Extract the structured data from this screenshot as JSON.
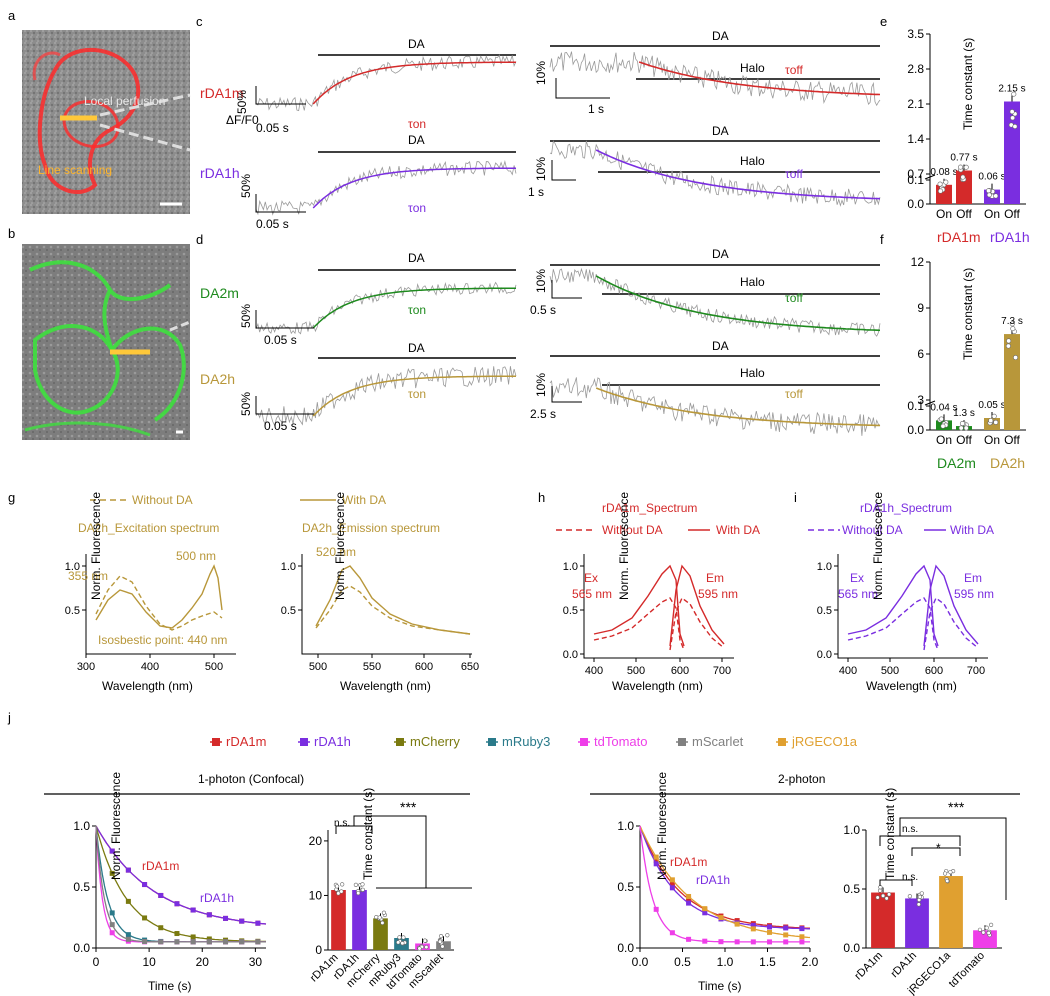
{
  "panel_labels": {
    "a": "a",
    "b": "b",
    "c": "c",
    "d": "d",
    "e": "e",
    "f": "f",
    "g": "g",
    "h": "h",
    "i": "i",
    "j": "j"
  },
  "colors": {
    "rDA1m": "#d42a2a",
    "rDA1h": "#7a2ee0",
    "DA2m": "#1e8a1e",
    "DA2h": "#b8973a",
    "mCherry": "#7a7a10",
    "mRuby3": "#2a7a8a",
    "tdTomato": "#ee3ee8",
    "mScarlet": "#808080",
    "jRGECO1a": "#e0a030",
    "trace": "#9a9a9a"
  },
  "panel_a": {
    "local_perfusion": "Local perfusion",
    "line_scanning": "Line scanning"
  },
  "panel_c": {
    "rows": [
      {
        "sensor": "rDA1m",
        "drug": "DA",
        "on_label": "τon",
        "off_label": "τoff",
        "halo": "Halo",
        "on_scale_y": "50%",
        "on_scale_x": "0.05 s",
        "off_scale_y": "10%",
        "off_scale_x": "1 s",
        "ylabel": "ΔF/F0"
      },
      {
        "sensor": "rDA1h",
        "drug": "DA",
        "on_label": "τon",
        "off_label": "τoff",
        "halo": "Halo",
        "on_scale_y": "50%",
        "on_scale_x": "0.05 s",
        "off_scale_y": "10%",
        "off_scale_x": "1 s"
      }
    ]
  },
  "panel_d": {
    "rows": [
      {
        "sensor": "DA2m",
        "drug": "DA",
        "on_label": "τon",
        "off_label": "τoff",
        "halo": "Halo",
        "on_scale_y": "50%",
        "on_scale_x": "0.05 s",
        "off_scale_y": "10%",
        "off_scale_x": "0.5 s"
      },
      {
        "sensor": "DA2h",
        "drug": "DA",
        "on_label": "τon",
        "off_label": "τoff",
        "halo": "Halo",
        "on_scale_y": "50%",
        "on_scale_x": "0.05 s",
        "off_scale_y": "10%",
        "off_scale_x": "2.5 s"
      }
    ]
  },
  "panel_e": {
    "ylabel": "Time constant (s)",
    "ticks": [
      "0.0",
      "0.1",
      "0.7",
      "1.4",
      "2.1",
      "2.8",
      "3.5"
    ],
    "bars": [
      {
        "label": "On",
        "value": 0.08,
        "text": "0.08 s"
      },
      {
        "label": "Off",
        "value": 0.77,
        "text": "0.77 s"
      },
      {
        "label": "On",
        "value": 0.06,
        "text": "0.06 s"
      },
      {
        "label": "Off",
        "value": 2.15,
        "text": "2.15 s"
      }
    ],
    "groups": [
      "rDA1m",
      "rDA1h"
    ]
  },
  "panel_f": {
    "ylabel": "Time constant (s)",
    "ticks": [
      "0.0",
      "0.1",
      "3",
      "6",
      "9",
      "12"
    ],
    "bars": [
      {
        "label": "On",
        "value": 0.04,
        "text": "0.04 s"
      },
      {
        "label": "Off",
        "value": 1.3,
        "text": "1.3 s"
      },
      {
        "label": "On",
        "value": 0.05,
        "text": "0.05 s"
      },
      {
        "label": "Off",
        "value": 7.3,
        "text": "7.3 s"
      }
    ],
    "groups": [
      "DA2m",
      "DA2h"
    ]
  },
  "panel_g": {
    "legend_without": "Without DA",
    "legend_with": "With DA",
    "ex_title": "DA2h_Excitation spectrum",
    "em_title": "DA2h_Emission spectrum",
    "ex_peak1": "355 nm",
    "ex_peak2": "500 nm",
    "isosbestic": "Isosbestic point: 440 nm",
    "em_peak": "520 nm",
    "ylabel": "Norm. Fluorescence",
    "xlabel": "Wavelength (nm)",
    "ex_xticks": [
      "300",
      "400",
      "500"
    ],
    "em_xticks": [
      "500",
      "550",
      "600",
      "650"
    ],
    "yticks": [
      "0.5",
      "1.0"
    ]
  },
  "panel_h": {
    "title": "rDA1m_Spectrum",
    "legend_without": "Without DA",
    "legend_with": "With DA",
    "ex": "Ex",
    "em": "Em",
    "ex_nm": "565 nm",
    "em_nm": "595 nm",
    "ylabel": "Norm. Fluorescence",
    "xlabel": "Wavelength (nm)",
    "xticks": [
      "400",
      "500",
      "600",
      "700"
    ],
    "yticks": [
      "0.0",
      "0.5",
      "1.0"
    ]
  },
  "panel_i": {
    "title": "rDA1h_Spectrum",
    "legend_without": "Without DA",
    "legend_with": "With DA",
    "ex": "Ex",
    "em": "Em",
    "ex_nm": "565 nm",
    "em_nm": "595 nm",
    "ylabel": "Norm. Fluorescence",
    "xlabel": "Wavelength (nm)",
    "xticks": [
      "400",
      "500",
      "600",
      "700"
    ],
    "yticks": [
      "0.0",
      "0.5",
      "1.0"
    ]
  },
  "panel_j": {
    "legend": [
      "rDA1m",
      "rDA1h",
      "mCherry",
      "mRuby3",
      "tdTomato",
      "mScarlet",
      "jRGECO1a"
    ],
    "one_photon_title": "1-photon (Confocal)",
    "two_photon_title": "2-photon",
    "ylabel": "Norm. Fluorescence",
    "xlabel": "Time (s)",
    "bar_ylabel": "Time constant (s)",
    "stars": "***",
    "ns": "n.s.",
    "single_star": "*",
    "one_xticks": [
      "0",
      "10",
      "20",
      "30"
    ],
    "one_yticks": [
      "0.0",
      "0.5",
      "1.0"
    ],
    "two_xticks": [
      "0.0",
      "0.5",
      "1.0",
      "1.5",
      "2.0"
    ],
    "two_yticks": [
      "0.0",
      "0.5",
      "1.0"
    ],
    "one_bar_yticks": [
      "0",
      "10",
      "20"
    ],
    "two_bar_yticks": [
      "0.0",
      "0.5",
      "1.0"
    ],
    "curve_label_rDA1m": "rDA1m",
    "curve_label_rDA1h": "rDA1h"
  },
  "chart_data": [
    {
      "type": "bar",
      "title": "e",
      "ylabel": "Time constant (s)",
      "categories": [
        "rDA1m On",
        "rDA1m Off",
        "rDA1h On",
        "rDA1h Off"
      ],
      "values": [
        0.08,
        0.77,
        0.06,
        2.15
      ]
    },
    {
      "type": "bar",
      "title": "f",
      "ylabel": "Time constant (s)",
      "categories": [
        "DA2m On",
        "DA2m Off",
        "DA2h On",
        "DA2h Off"
      ],
      "values": [
        0.04,
        1.3,
        0.05,
        7.3
      ]
    },
    {
      "type": "bar",
      "title": "j 1-photon (Confocal)",
      "ylabel": "Time constant (s)",
      "categories": [
        "rDA1m",
        "rDA1h",
        "mCherry",
        "mRuby3",
        "tdTomato",
        "mScarlet"
      ],
      "values": [
        11,
        11,
        5.8,
        2.2,
        1.2,
        1.6
      ],
      "ylim": [
        0,
        22
      ]
    },
    {
      "type": "bar",
      "title": "j 2-photon",
      "ylabel": "Time constant (s)",
      "categories": [
        "rDA1m",
        "rDA1h",
        "jRGECO1a",
        "tdTomato"
      ],
      "values": [
        0.47,
        0.42,
        0.61,
        0.15
      ],
      "ylim": [
        0,
        1
      ]
    },
    {
      "type": "line",
      "title": "j 1-photon decay",
      "xlabel": "Time (s)",
      "ylabel": "Norm. Fluorescence",
      "xlim": [
        0,
        32
      ],
      "ylim": [
        0,
        1
      ],
      "series": [
        {
          "name": "rDA1m",
          "tau": 11
        },
        {
          "name": "rDA1h",
          "tau": 11
        },
        {
          "name": "mCherry",
          "tau": 5.8
        },
        {
          "name": "mRuby3",
          "tau": 2.2
        },
        {
          "name": "tdTomato",
          "tau": 1.2
        },
        {
          "name": "mScarlet",
          "tau": 1.6
        }
      ]
    },
    {
      "type": "line",
      "title": "j 2-photon decay",
      "xlabel": "Time (s)",
      "ylabel": "Norm. Fluorescence",
      "xlim": [
        0,
        2
      ],
      "ylim": [
        0,
        1
      ],
      "series": [
        {
          "name": "rDA1m",
          "tau": 0.47
        },
        {
          "name": "rDA1h",
          "tau": 0.42
        },
        {
          "name": "jRGECO1a",
          "tau": 0.61
        },
        {
          "name": "tdTomato",
          "tau": 0.15
        }
      ]
    }
  ]
}
